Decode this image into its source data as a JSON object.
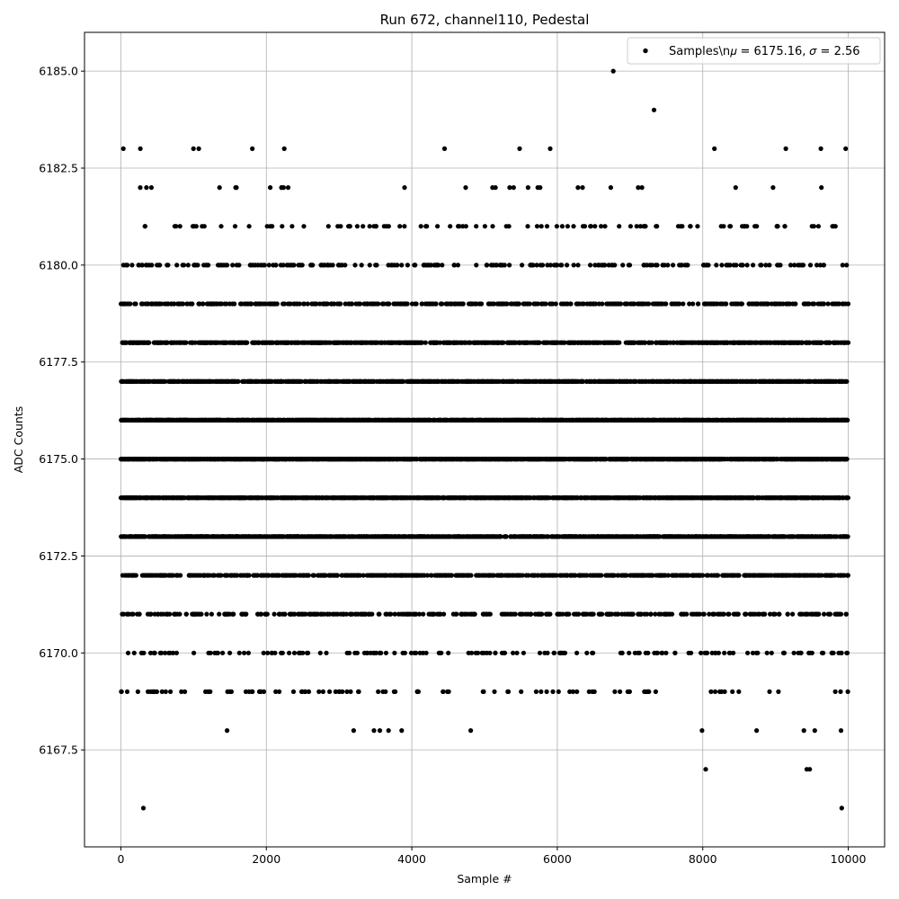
{
  "chart_data": {
    "type": "scatter",
    "title": "Run 672, channel110, Pedestal",
    "xlabel": "Sample #",
    "ylabel": "ADC Counts",
    "xlim": [
      -500,
      10500
    ],
    "ylim": [
      6165.0,
      6186.0
    ],
    "x_ticks": [
      0,
      2000,
      4000,
      6000,
      8000,
      10000
    ],
    "x_tick_labels": [
      "0",
      "2000",
      "4000",
      "6000",
      "8000",
      "10000"
    ],
    "y_ticks": [
      6167.5,
      6170.0,
      6172.5,
      6175.0,
      6177.5,
      6180.0,
      6182.5,
      6185.0
    ],
    "y_tick_labels": [
      "6167.5",
      "6170.0",
      "6172.5",
      "6175.0",
      "6177.5",
      "6180.0",
      "6182.5",
      "6185.0"
    ],
    "grid": true,
    "legend_position": "top-right",
    "series": [
      {
        "name": "Samples\\n𝜇 = 6175.16, 𝜎 = 2.56",
        "color": "#000000",
        "marker": "circle",
        "x_range": [
          0,
          10000
        ],
        "n_points": 10000,
        "mean": 6175.16,
        "sigma": 2.56,
        "outliers": [
          {
            "x": 6770,
            "y": 6185
          },
          {
            "x": 7330,
            "y": 6184
          },
          {
            "x": 8040,
            "y": 6167
          },
          {
            "x": 9430,
            "y": 6167
          },
          {
            "x": 9470,
            "y": 6167
          },
          {
            "x": 310,
            "y": 6166
          },
          {
            "x": 9910,
            "y": 6166
          },
          {
            "x": 1460,
            "y": 6168
          },
          {
            "x": 3200,
            "y": 6168
          },
          {
            "x": 3480,
            "y": 6168
          },
          {
            "x": 3560,
            "y": 6168
          },
          {
            "x": 3680,
            "y": 6168
          },
          {
            "x": 3860,
            "y": 6168
          },
          {
            "x": 4810,
            "y": 6168
          },
          {
            "x": 7990,
            "y": 6168
          },
          {
            "x": 8740,
            "y": 6168
          },
          {
            "x": 9390,
            "y": 6168
          },
          {
            "x": 9540,
            "y": 6168
          },
          {
            "x": 9900,
            "y": 6168
          }
        ]
      }
    ]
  }
}
